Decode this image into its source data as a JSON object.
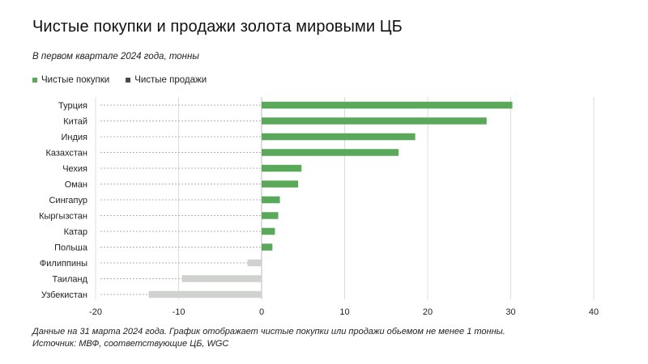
{
  "title": "Чистые покупки и продажи золота мировыми ЦБ",
  "subtitle": "В первом квартале 2024 года, тонны",
  "legend": [
    {
      "label": "Чистые покупки",
      "color": "#5aa85a"
    },
    {
      "label": "Чистые продажи",
      "color": "#4a4a4a"
    }
  ],
  "footnote": {
    "line1": "Данные на 31 марта 2024 года. График отображает чистые покупки или продажи обьемом не менее 1 тонны.",
    "line2": "Источник: МВФ, соответствующие ЦБ, WGC"
  },
  "chart_data": {
    "type": "bar",
    "orientation": "horizontal",
    "categories": [
      "Турция",
      "Китай",
      "Индия",
      "Казахстан",
      "Чехия",
      "Оман",
      "Сингапур",
      "Кыргызстан",
      "Катар",
      "Польша",
      "Филиппины",
      "Таиланд",
      "Узбекистан"
    ],
    "values": [
      30.2,
      27.1,
      18.5,
      16.5,
      4.8,
      4.4,
      2.2,
      2.0,
      1.6,
      1.3,
      -1.7,
      -9.6,
      -13.6
    ],
    "xlim": [
      -20,
      40
    ],
    "xticks": [
      -20,
      -10,
      0,
      10,
      20,
      30,
      40
    ],
    "grid": "vertical",
    "positive_color": "#5aa85a",
    "negative_color": "#cfd2cf",
    "legend_position": "top-left"
  }
}
